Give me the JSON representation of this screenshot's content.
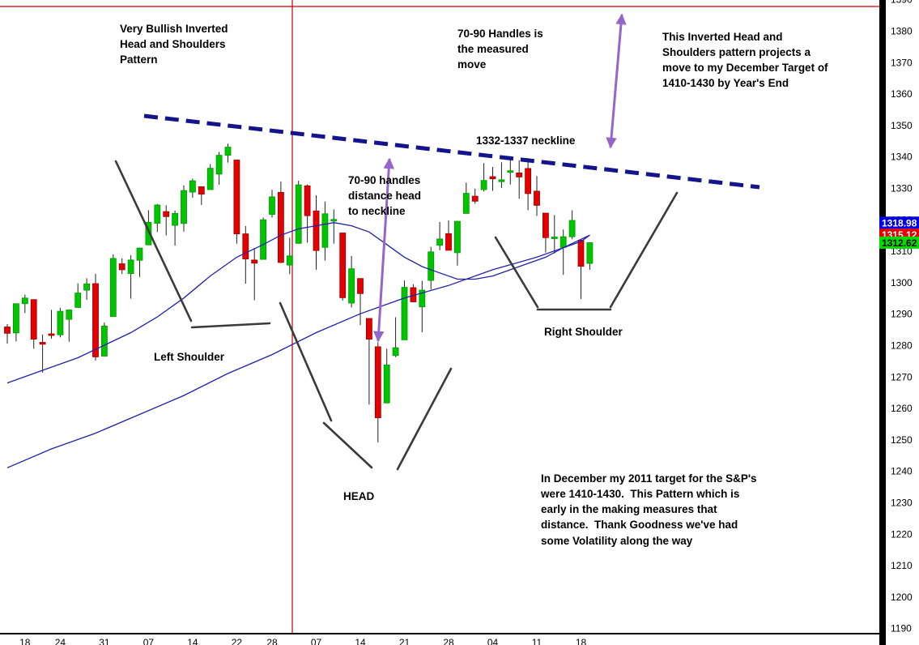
{
  "chart_data": {
    "type": "candlestick",
    "y_axis": {
      "min": 1190,
      "max": 1390,
      "tick_interval": 10,
      "ticks": [
        1390,
        1380,
        1370,
        1360,
        1350,
        1340,
        1330,
        1320,
        1310,
        1300,
        1290,
        1280,
        1270,
        1260,
        1250,
        1240,
        1230,
        1220,
        1210,
        1200,
        1190
      ]
    },
    "x_axis": {
      "ticks": [
        {
          "label": "18",
          "i": 2
        },
        {
          "label": "24",
          "i": 6
        },
        {
          "label": "31",
          "i": 11
        },
        {
          "label": "07",
          "i": 16
        },
        {
          "label": "14",
          "i": 21
        },
        {
          "label": "22",
          "i": 26
        },
        {
          "label": "28",
          "i": 30
        },
        {
          "label": "07",
          "i": 35
        },
        {
          "label": "14",
          "i": 40
        },
        {
          "label": "21",
          "i": 45
        },
        {
          "label": "28",
          "i": 50
        },
        {
          "label": "04",
          "i": 55
        },
        {
          "label": "11",
          "i": 60
        },
        {
          "label": "18",
          "i": 65
        }
      ]
    },
    "candles": [
      [
        1285.8,
        1286.7,
        1280.5,
        1283.8
      ],
      [
        1283.9,
        1293.2,
        1281.2,
        1293.2
      ],
      [
        1293.2,
        1296.1,
        1290.2,
        1295.0
      ],
      [
        1294.5,
        1294.6,
        1278.9,
        1281.9
      ],
      [
        1280.9,
        1283.4,
        1271.3,
        1280.3
      ],
      [
        1283.6,
        1291.2,
        1282.1,
        1283.4
      ],
      [
        1283.3,
        1291.9,
        1282.5,
        1290.8
      ],
      [
        1288.2,
        1291.3,
        1281.1,
        1291.2
      ],
      [
        1292.0,
        1299.7,
        1292.0,
        1296.6
      ],
      [
        1297.5,
        1301.3,
        1294.4,
        1299.5
      ],
      [
        1299.6,
        1302.7,
        1275.1,
        1276.3
      ],
      [
        1276.5,
        1287.2,
        1276.5,
        1286.1
      ],
      [
        1289.1,
        1308.9,
        1289.1,
        1307.6
      ],
      [
        1305.9,
        1307.6,
        1302.6,
        1304.0
      ],
      [
        1302.8,
        1308.6,
        1294.8,
        1307.1
      ],
      [
        1307.0,
        1311.0,
        1301.7,
        1310.9
      ],
      [
        1311.9,
        1322.9,
        1311.9,
        1319.1
      ],
      [
        1318.8,
        1324.9,
        1316.0,
        1324.6
      ],
      [
        1322.5,
        1324.5,
        1314.9,
        1320.9
      ],
      [
        1318.1,
        1322.8,
        1311.7,
        1321.9
      ],
      [
        1318.7,
        1330.8,
        1316.1,
        1329.2
      ],
      [
        1328.7,
        1333.0,
        1326.9,
        1332.3
      ],
      [
        1330.4,
        1330.4,
        1324.6,
        1328.0
      ],
      [
        1329.5,
        1337.6,
        1329.5,
        1336.3
      ],
      [
        1334.4,
        1341.5,
        1331.0,
        1340.4
      ],
      [
        1340.4,
        1344.1,
        1338.1,
        1343.0
      ],
      [
        1338.9,
        1338.9,
        1312.3,
        1315.4
      ],
      [
        1315.4,
        1317.9,
        1299.6,
        1307.4
      ],
      [
        1307.1,
        1310.9,
        1294.3,
        1306.1
      ],
      [
        1307.3,
        1320.6,
        1307.3,
        1319.9
      ],
      [
        1321.6,
        1329.4,
        1320.6,
        1327.2
      ],
      [
        1328.6,
        1332.1,
        1306.1,
        1306.3
      ],
      [
        1305.5,
        1314.2,
        1302.6,
        1308.4
      ],
      [
        1312.4,
        1332.3,
        1312.4,
        1331.0
      ],
      [
        1330.7,
        1331.1,
        1312.6,
        1321.2
      ],
      [
        1322.7,
        1327.7,
        1304.0,
        1310.1
      ],
      [
        1311.1,
        1325.7,
        1306.9,
        1321.8
      ],
      [
        1319.9,
        1323.2,
        1312.3,
        1320.0
      ],
      [
        1315.7,
        1315.7,
        1294.2,
        1295.1
      ],
      [
        1293.4,
        1308.4,
        1292.0,
        1304.3
      ],
      [
        1301.2,
        1301.2,
        1286.4,
        1296.4
      ],
      [
        1288.5,
        1288.5,
        1261.1,
        1281.9
      ],
      [
        1279.5,
        1280.9,
        1249.1,
        1256.9
      ],
      [
        1261.6,
        1278.9,
        1261.6,
        1273.7
      ],
      [
        1276.7,
        1288.9,
        1276.2,
        1279.2
      ],
      [
        1281.7,
        1300.6,
        1281.7,
        1298.4
      ],
      [
        1298.3,
        1299.4,
        1293.7,
        1293.8
      ],
      [
        1292.2,
        1300.5,
        1284.1,
        1297.5
      ],
      [
        1300.6,
        1311.3,
        1297.7,
        1309.7
      ],
      [
        1311.8,
        1319.2,
        1310.2,
        1313.8
      ],
      [
        1315.5,
        1319.7,
        1310.2,
        1310.2
      ],
      [
        1309.4,
        1319.5,
        1305.3,
        1319.4
      ],
      [
        1321.9,
        1331.7,
        1321.9,
        1328.3
      ],
      [
        1327.4,
        1329.8,
        1325.0,
        1325.8
      ],
      [
        1329.5,
        1337.9,
        1328.9,
        1332.4
      ],
      [
        1333.6,
        1336.7,
        1329.1,
        1332.9
      ],
      [
        1332.0,
        1338.2,
        1330.0,
        1332.6
      ],
      [
        1335.1,
        1339.4,
        1331.1,
        1335.5
      ],
      [
        1334.8,
        1338.8,
        1326.6,
        1333.5
      ],
      [
        1336.2,
        1339.5,
        1322.9,
        1328.2
      ],
      [
        1329.0,
        1333.8,
        1321.1,
        1324.5
      ],
      [
        1322.0,
        1322.0,
        1309.5,
        1314.2
      ],
      [
        1314.0,
        1321.4,
        1309.2,
        1314.4
      ],
      [
        1311.1,
        1316.8,
        1302.4,
        1314.5
      ],
      [
        1314.5,
        1322.9,
        1313.7,
        1319.7
      ],
      [
        1313.4,
        1313.4,
        1294.7,
        1305.1
      ],
      [
        1306.0,
        1312.7,
        1304.0,
        1312.6
      ]
    ],
    "ma_fast": {
      "points": [
        [
          0,
          1268
        ],
        [
          4,
          1272
        ],
        [
          8,
          1276
        ],
        [
          11,
          1280
        ],
        [
          14,
          1284
        ],
        [
          17,
          1289
        ],
        [
          20,
          1295
        ],
        [
          23,
          1302
        ],
        [
          26,
          1308
        ],
        [
          29,
          1312
        ],
        [
          31,
          1315
        ],
        [
          33,
          1317
        ],
        [
          35,
          1318
        ],
        [
          37,
          1319
        ],
        [
          39,
          1318
        ],
        [
          41,
          1316
        ],
        [
          43,
          1312
        ],
        [
          45,
          1308
        ],
        [
          47,
          1305
        ],
        [
          49,
          1303
        ],
        [
          51,
          1301
        ],
        [
          53,
          1301
        ],
        [
          55,
          1302
        ],
        [
          57,
          1304
        ],
        [
          59,
          1306
        ],
        [
          61,
          1308
        ],
        [
          63,
          1311
        ],
        [
          65,
          1313
        ],
        [
          66,
          1315
        ]
      ]
    },
    "ma_slow": {
      "points": [
        [
          0,
          1241
        ],
        [
          5,
          1247
        ],
        [
          10,
          1252
        ],
        [
          15,
          1258
        ],
        [
          20,
          1264
        ],
        [
          25,
          1271
        ],
        [
          30,
          1277
        ],
        [
          35,
          1284
        ],
        [
          40,
          1290
        ],
        [
          45,
          1295
        ],
        [
          50,
          1299
        ],
        [
          55,
          1304
        ],
        [
          60,
          1308
        ],
        [
          63,
          1311
        ],
        [
          66,
          1315
        ]
      ]
    },
    "price_tags": [
      {
        "text": "1318.98",
        "price": 1318.98,
        "bg": "#0000e6",
        "fg": "#ffffff"
      },
      {
        "text": "1315.12",
        "price": 1315.12,
        "bg": "#e60000",
        "fg": "#ffffff"
      },
      {
        "text": "1312.62",
        "price": 1312.62,
        "bg": "#00dc00",
        "fg": "#000000"
      }
    ],
    "colors": {
      "up": "#00c400",
      "down": "#e40000",
      "up_border": "#009900",
      "down_border": "#990000",
      "ma": "#2121a8",
      "neckline": "#14148c",
      "arrow": "#9466c8",
      "redline": "#c00000",
      "trendline": "#3a3a3a"
    },
    "annotations": {
      "very_bullish": "Very Bullish Inverted\nHead and Shoulders\nPattern",
      "measured_move": "70-90 Handles is\nthe measured\nmove",
      "projection": "This Inverted Head and\nShoulders pattern projects a\nmove to my December Target of\n1410-1430 by Year's End",
      "neckline_label": "1332-1337 neckline",
      "handles_distance": "70-90 handles\ndistance head\nto neckline",
      "left_shoulder": "Left Shoulder",
      "head": "HEAD",
      "right_shoulder": "Right Shoulder",
      "december_note": "In December my 2011 target for the S&P's\nwere 1410-1430.  This Pattern which is\nearly in the making measures that\ndistance.  Thank Goodness we've had\nsome Volatility along the way"
    }
  }
}
